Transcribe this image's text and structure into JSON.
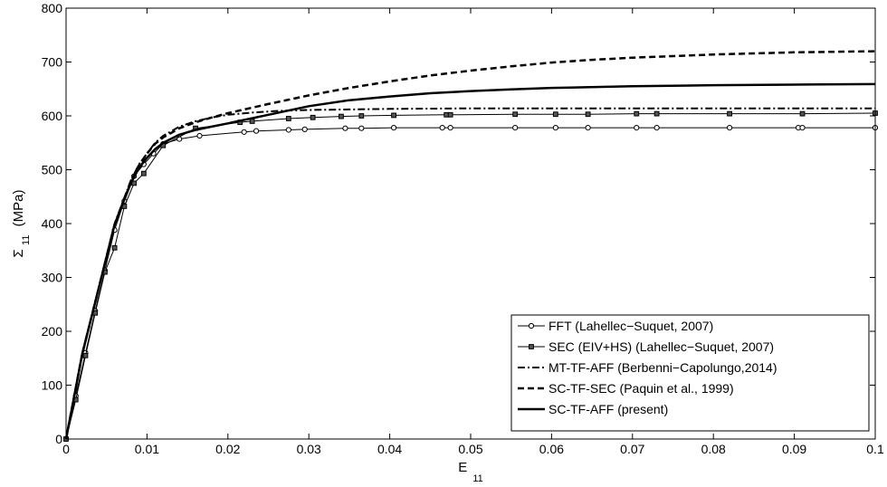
{
  "chart_data": {
    "type": "line",
    "xlabel": "E",
    "xlabel_sub": "11",
    "ylabel": "Σ",
    "ylabel_sub": "11",
    "ylabel_unit": "(MPa)",
    "xlim": [
      0,
      0.1
    ],
    "ylim": [
      0,
      800
    ],
    "x_ticks": [
      0,
      0.01,
      0.02,
      0.03,
      0.04,
      0.05,
      0.06,
      0.07,
      0.08,
      0.09,
      0.1
    ],
    "x_tick_labels": [
      "0",
      "0.01",
      "0.02",
      "0.03",
      "0.04",
      "0.05",
      "0.06",
      "0.07",
      "0.08",
      "0.09",
      "0.1"
    ],
    "y_ticks": [
      0,
      100,
      200,
      300,
      400,
      500,
      600,
      700,
      800
    ],
    "y_tick_labels": [
      "0",
      "100",
      "200",
      "300",
      "400",
      "500",
      "600",
      "700",
      "800"
    ],
    "grid": false,
    "legend_position": "bottom-right",
    "series": [
      {
        "name": "FFT (Lahellec−Suquet, 2007)",
        "line_style": "solid",
        "line_width": 1,
        "marker": "circle",
        "color": "#000000",
        "x": [
          0,
          0.0012,
          0.0024,
          0.0036,
          0.0048,
          0.006,
          0.0072,
          0.0084,
          0.0096,
          0.0108,
          0.012,
          0.014,
          0.0165,
          0.022,
          0.0235,
          0.0275,
          0.0295,
          0.0345,
          0.0365,
          0.0405,
          0.0465,
          0.0475,
          0.0555,
          0.0605,
          0.0645,
          0.0705,
          0.073,
          0.082,
          0.0905,
          0.091,
          0.1
        ],
        "y": [
          0,
          80,
          160,
          238,
          313,
          388,
          442,
          488,
          510,
          530,
          548,
          557,
          563,
          570,
          572,
          574,
          575,
          577,
          577,
          578,
          578,
          578,
          578,
          578,
          578,
          578,
          578,
          578,
          578,
          578,
          578
        ]
      },
      {
        "name": "SEC (EIV+HS) (Lahellec−Suquet, 2007)",
        "line_style": "solid",
        "line_width": 1,
        "marker": "square",
        "color": "#000000",
        "x": [
          0,
          0.0012,
          0.0024,
          0.0036,
          0.0048,
          0.006,
          0.0072,
          0.0084,
          0.0096,
          0.012,
          0.016,
          0.0215,
          0.023,
          0.0275,
          0.0305,
          0.034,
          0.0365,
          0.0405,
          0.047,
          0.0475,
          0.0555,
          0.0605,
          0.0645,
          0.0705,
          0.073,
          0.082,
          0.091,
          0.1
        ],
        "y": [
          0,
          73,
          155,
          234,
          310,
          355,
          432,
          475,
          493,
          545,
          577,
          588,
          590,
          595,
          597,
          599,
          600,
          601,
          602,
          602,
          603,
          603,
          603,
          604,
          604,
          604,
          604,
          605
        ]
      },
      {
        "name": "MT-TF-AFF (Berbenni−Capolungo,2014)",
        "line_style": "dashdot",
        "line_width": 2,
        "marker": "none",
        "color": "#000000",
        "x": [
          0,
          0.002,
          0.004,
          0.006,
          0.008,
          0.009,
          0.01,
          0.011,
          0.012,
          0.014,
          0.016,
          0.018,
          0.02,
          0.023,
          0.026,
          0.03,
          0.035,
          0.04,
          0.05,
          0.06,
          0.07,
          0.08,
          0.09,
          0.1
        ],
        "y": [
          0,
          160,
          280,
          400,
          480,
          510,
          530,
          550,
          563,
          580,
          590,
          597,
          602,
          606,
          609,
          611,
          612,
          613,
          614,
          614,
          614,
          614,
          614,
          614
        ]
      },
      {
        "name": "SC-TF-SEC (Paquin et al., 1999)",
        "line_style": "dashed",
        "line_width": 2.5,
        "marker": "none",
        "color": "#000000",
        "x": [
          0,
          0.002,
          0.004,
          0.006,
          0.008,
          0.009,
          0.01,
          0.011,
          0.012,
          0.014,
          0.016,
          0.018,
          0.02,
          0.025,
          0.03,
          0.035,
          0.04,
          0.045,
          0.05,
          0.055,
          0.06,
          0.065,
          0.07,
          0.075,
          0.08,
          0.085,
          0.09,
          0.095,
          0.1
        ],
        "y": [
          0,
          158,
          278,
          398,
          478,
          508,
          530,
          548,
          560,
          577,
          588,
          597,
          605,
          622,
          638,
          652,
          664,
          675,
          684,
          692,
          699,
          704,
          708,
          711,
          714,
          716,
          718,
          719,
          720
        ]
      },
      {
        "name": "SC-TF-AFF (present)",
        "line_style": "solid",
        "line_width": 2.5,
        "marker": "none",
        "color": "#000000",
        "x": [
          0,
          0.002,
          0.004,
          0.006,
          0.008,
          0.009,
          0.01,
          0.011,
          0.012,
          0.014,
          0.016,
          0.018,
          0.02,
          0.025,
          0.03,
          0.035,
          0.04,
          0.045,
          0.05,
          0.055,
          0.06,
          0.07,
          0.08,
          0.09,
          0.1
        ],
        "y": [
          0,
          158,
          278,
          398,
          475,
          503,
          522,
          538,
          550,
          565,
          574,
          580,
          586,
          602,
          618,
          629,
          636,
          642,
          646,
          649,
          652,
          655,
          657,
          658,
          659
        ]
      }
    ]
  }
}
